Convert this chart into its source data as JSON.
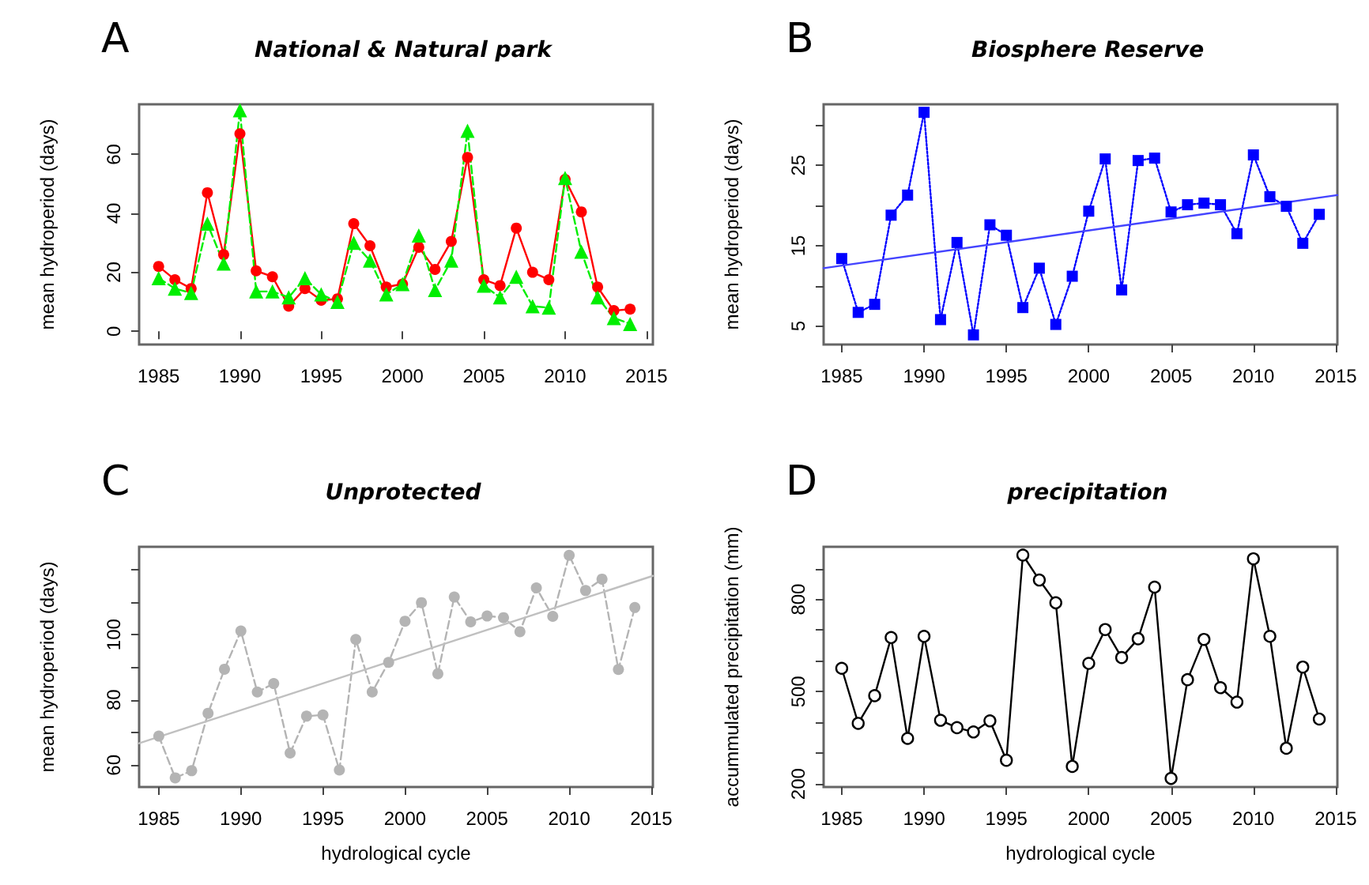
{
  "chart_data": [
    {
      "type": "line",
      "title": "National & Natural park",
      "ylabel": "mean hydroperiod (days)",
      "annotations": [
        "A"
      ],
      "grid": false,
      "x": [
        1985,
        1986,
        1987,
        1988,
        1989,
        1990,
        1991,
        1992,
        1993,
        1994,
        1995,
        1996,
        1997,
        1998,
        1999,
        2000,
        2001,
        2002,
        2003,
        2004,
        2005,
        2006,
        2007,
        2008,
        2009,
        2010,
        2011,
        2012,
        2013,
        2014
      ],
      "xlim": [
        1983.8,
        2015.4
      ],
      "xticks": [
        1985,
        1990,
        1995,
        2000,
        2005,
        2010,
        2015
      ],
      "ylim": [
        -4.5,
        77
      ],
      "yticks": [
        0,
        20,
        40,
        60
      ],
      "series": [
        {
          "color": "#ff0000",
          "marker": "circle",
          "line_style": "solid",
          "values": [
            22,
            17.5,
            14.5,
            47,
            26,
            67,
            20.5,
            18.5,
            8.5,
            14.5,
            10.5,
            11,
            36.5,
            29,
            15,
            16,
            28.5,
            21,
            30.5,
            59,
            17.5,
            15.5,
            35,
            20,
            17.5,
            51.5,
            40.5,
            15,
            7,
            7.5
          ]
        },
        {
          "color": "#00ee00",
          "marker": "triangle",
          "line_style": "dashed",
          "values": [
            18,
            14.5,
            13,
            36.5,
            23,
            75,
            13.5,
            13.5,
            11.5,
            18,
            12.5,
            10,
            30,
            24,
            12.5,
            16,
            32.5,
            14,
            24,
            68,
            15.5,
            11.5,
            18.5,
            8.5,
            8,
            52,
            27,
            11.5,
            4.5,
            2.5
          ]
        }
      ]
    },
    {
      "type": "line",
      "title": "Biosphere Reserve",
      "ylabel": "mean hydroperiod (days)",
      "annotations": [
        "B"
      ],
      "grid": false,
      "x": [
        1985,
        1986,
        1987,
        1988,
        1989,
        1990,
        1991,
        1992,
        1993,
        1994,
        1995,
        1996,
        1997,
        1998,
        1999,
        2000,
        2001,
        2002,
        2003,
        2004,
        2005,
        2006,
        2007,
        2008,
        2009,
        2010,
        2011,
        2012,
        2013,
        2014
      ],
      "xlim": [
        1983.9,
        2015.1
      ],
      "xticks": [
        1985,
        1990,
        1995,
        2000,
        2005,
        2010,
        2015
      ],
      "ylim": [
        2.7,
        32.6
      ],
      "yticks": [
        5,
        {
          "value": 10,
          "label": null
        },
        15,
        {
          "value": 20,
          "label": null
        },
        25,
        {
          "value": 30,
          "label": null
        }
      ],
      "series": [
        {
          "color": "#0000ff",
          "marker": "square",
          "line_style": "dotted",
          "values": [
            13.4,
            6.7,
            7.7,
            18.8,
            21.3,
            31.6,
            5.8,
            15.4,
            3.9,
            17.6,
            16.3,
            7.3,
            12.2,
            5.2,
            11.2,
            19.3,
            25.8,
            9.5,
            25.6,
            25.9,
            19.2,
            20.1,
            20.3,
            20.1,
            16.5,
            26.3,
            21.1,
            19.9,
            15.3,
            18.9
          ]
        },
        {
          "color": "#4444ff",
          "marker": "none",
          "line_style": "solid",
          "x": [
            1983.9,
            2015.1
          ],
          "values": [
            12.2,
            21.3
          ]
        }
      ]
    },
    {
      "type": "line",
      "title": "Unprotected",
      "xlabel": "hydrological cycle",
      "ylabel": "mean hydroperiod (days)",
      "annotations": [
        "C"
      ],
      "grid": false,
      "x": [
        1985,
        1986,
        1987,
        1988,
        1989,
        1990,
        1991,
        1992,
        1993,
        1994,
        1995,
        1996,
        1997,
        1998,
        1999,
        2000,
        2001,
        2002,
        2003,
        2004,
        2005,
        2006,
        2007,
        2008,
        2009,
        2010,
        2011,
        2012,
        2013,
        2014
      ],
      "xlim": [
        1983.8,
        2015.1
      ],
      "xticks": [
        1985,
        1990,
        1995,
        2000,
        2005,
        2010,
        2015
      ],
      "ylim": [
        53.3,
        126.9
      ],
      "yticks": [
        60,
        {
          "value": 70,
          "label": null
        },
        80,
        {
          "value": 90,
          "label": null
        },
        100,
        {
          "value": 110,
          "label": null
        },
        {
          "value": 120,
          "label": null
        }
      ],
      "series": [
        {
          "color": "#b4b4b4",
          "marker": "circle",
          "line_style": "dashed",
          "values": [
            68.9,
            56.1,
            58.3,
            75.9,
            89.4,
            101.1,
            82.4,
            85,
            63.7,
            75,
            75.4,
            58.5,
            98.5,
            82.4,
            91.5,
            104.1,
            109.8,
            88,
            111.5,
            103.9,
            105.7,
            105.2,
            100.9,
            114.3,
            105.6,
            124.3,
            113.5,
            117,
            89.3,
            108.3
          ]
        },
        {
          "color": "#c0c0c0",
          "marker": "none",
          "line_style": "solid",
          "x": [
            1983.8,
            2015.1
          ],
          "values": [
            66.7,
            118
          ]
        }
      ]
    },
    {
      "type": "line",
      "title": "precipitation",
      "xlabel": "hydrological cycle",
      "ylabel": "accummulated precipitation (mm)",
      "annotations": [
        "D"
      ],
      "grid": false,
      "x": [
        1985,
        1986,
        1987,
        1988,
        1989,
        1990,
        1991,
        1992,
        1993,
        1994,
        1995,
        1996,
        1997,
        1998,
        1999,
        2000,
        2001,
        2002,
        2003,
        2004,
        2005,
        2006,
        2007,
        2008,
        2009,
        2010,
        2011,
        2012,
        2013,
        2014
      ],
      "xlim": [
        1983.9,
        2015.1
      ],
      "xticks": [
        1985,
        1990,
        1995,
        2000,
        2005,
        2010,
        2015
      ],
      "ylim": [
        190,
        971
      ],
      "yticks": [
        200,
        {
          "value": 300,
          "label": null
        },
        {
          "value": 400,
          "label": null
        },
        500,
        {
          "value": 600,
          "label": null
        },
        {
          "value": 700,
          "label": null
        },
        800,
        {
          "value": 900,
          "label": null
        }
      ],
      "series": [
        {
          "color": "#000000",
          "marker": "circle",
          "line_style": "solid",
          "values": [
            576,
            397,
            487,
            676,
            348,
            680,
            407,
            383,
            369,
            405,
            277,
            944,
            863,
            789,
            257,
            592,
            702,
            611,
            672,
            840,
            218,
            539,
            670,
            513,
            466,
            932,
            680,
            316,
            580,
            411
          ]
        }
      ]
    }
  ]
}
